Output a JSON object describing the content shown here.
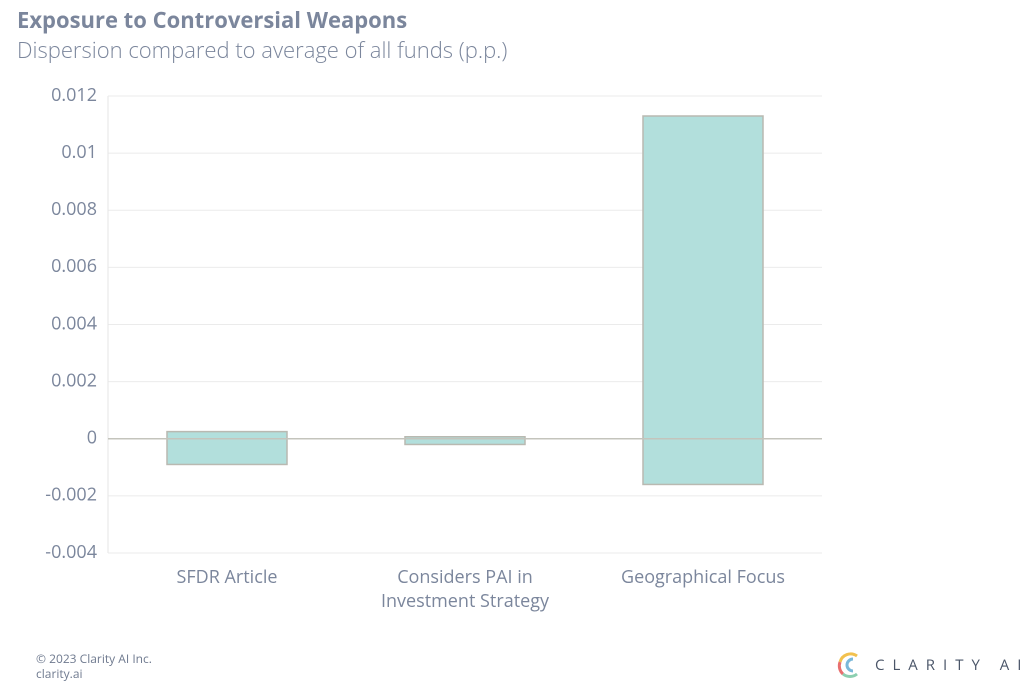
{
  "chart_data": {
    "type": "range-bar",
    "title": "Exposure to Controversial Weapons",
    "subtitle": "Dispersion compared to average of all funds (p.p.)",
    "categories": [
      "SFDR Article",
      "Considers PAI in Investment Strategy",
      "Geographical Focus"
    ],
    "series": [
      {
        "low": [
          -0.0009,
          -0.0002,
          -0.0016
        ],
        "high": [
          0.00025,
          7e-05,
          0.0113
        ],
        "color": "#b2dfdc"
      }
    ],
    "ylim": [
      -0.004,
      0.012
    ],
    "yticks": [
      -0.004,
      -0.002,
      0,
      0.002,
      0.004,
      0.006,
      0.008,
      0.01,
      0.012
    ],
    "grid": true
  },
  "footer": {
    "copyright": "© 2023 Clarity AI Inc.",
    "site": "clarity.ai",
    "logo_text": "CLARITY AI"
  }
}
